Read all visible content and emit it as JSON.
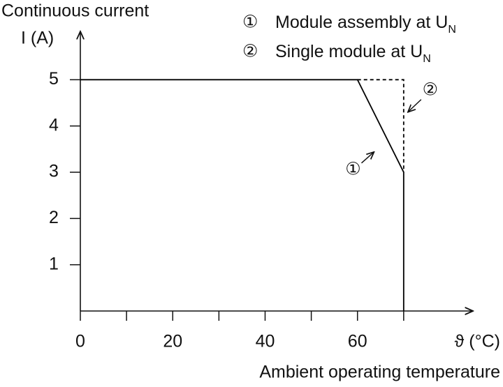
{
  "chart_data": {
    "type": "line",
    "ylabel": "Continuous current",
    "yunit": "I (A)",
    "xunit": "ϑ (°C)",
    "xlabel": "Ambient operating temperature",
    "xlim": [
      0,
      85
    ],
    "ylim": [
      0,
      6
    ],
    "xticks": [
      0,
      20,
      40,
      60
    ],
    "x_minor_ticks": [
      10,
      30,
      50,
      70
    ],
    "yticks": [
      1,
      2,
      3,
      4,
      5
    ],
    "series": [
      {
        "name": "Module assembly at U",
        "name_subscript": "N",
        "marker": "①",
        "color": "#000000",
        "dashed": false,
        "x": [
          0,
          60,
          70,
          70
        ],
        "values": [
          5,
          5,
          3,
          0
        ]
      },
      {
        "name": "Single module at U",
        "name_subscript": "N",
        "marker": "②",
        "color": "#000000",
        "dashed": true,
        "x": [
          60,
          70,
          70
        ],
        "values": [
          5,
          5,
          3
        ]
      }
    ]
  }
}
